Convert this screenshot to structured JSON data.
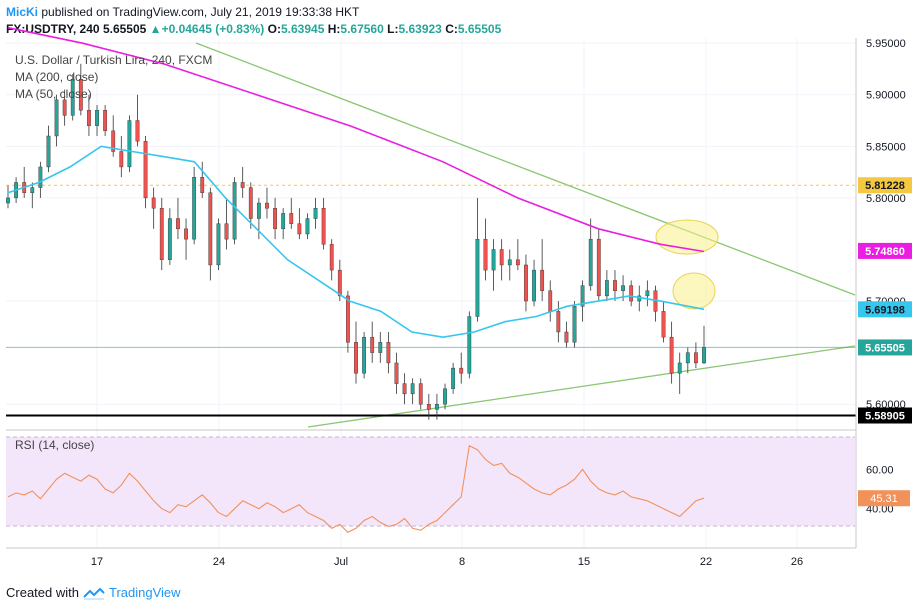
{
  "header": {
    "author": "MicKi",
    "published": "published on TradingView.com, July 21, 2019 19:33:38 HKT",
    "symbol": "FX:USDTRY, 240",
    "last": "5.65505",
    "change_arrow": "▲",
    "change": "+0.04645 (+0.83%)",
    "ohlc_o_label": "O:",
    "ohlc_o": "5.63945",
    "ohlc_h_label": "H:",
    "ohlc_h": "5.67560",
    "ohlc_l_label": "L:",
    "ohlc_l": "5.63923",
    "ohlc_c_label": "C:",
    "ohlc_c": "5.65505"
  },
  "legend": {
    "title": "U.S. Dollar / Turkish Lira, 240, FXCM",
    "ma200": "MA (200, close)",
    "ma50": "MA (50, close)"
  },
  "rsi_label": "RSI (14, close)",
  "footer": {
    "created_with": "Created with",
    "brand": "TradingView",
    "logo_icon": "tradingview-logo-icon"
  },
  "colors": {
    "bull": "#26a69a",
    "bear": "#ef5350",
    "ma200": "#e91ee0",
    "ma50": "#35c7ee",
    "trendline": "#8bc672",
    "rsi": "#f2915a",
    "support": "#000000",
    "resistance": "#f5c842",
    "rsi_band": "#f3e6fb",
    "highlight": "#f7f08a"
  },
  "chart_data": [
    {
      "type": "candlestick",
      "title": "U.S. Dollar / Turkish Lira, 240, FXCM",
      "x_tick_labels": [
        "17",
        "24",
        "Jul",
        "8",
        "15",
        "22",
        "26"
      ],
      "y_tick_labels": [
        "5.95000",
        "5.90000",
        "5.85000",
        "5.80000",
        "5.70000",
        "5.60000"
      ],
      "ylim": [
        5.575,
        5.955
      ],
      "grid": true,
      "price_labels": [
        {
          "value": "5.81228",
          "color": "#f5c842",
          "text_color": "#131722"
        },
        {
          "value": "5.74860",
          "color": "#e91ee0",
          "text_color": "#ffffff"
        },
        {
          "value": "5.69198",
          "color": "#35c7ee",
          "text_color": "#131722"
        },
        {
          "value": "5.65505",
          "color": "#26a69a",
          "text_color": "#ffffff"
        },
        {
          "value": "5.58905",
          "color": "#000000",
          "text_color": "#ffffff"
        }
      ],
      "horizontal_levels": [
        {
          "name": "resistance",
          "value": 5.81228,
          "style": "dashed"
        },
        {
          "name": "support",
          "value": 5.58905,
          "style": "solid"
        },
        {
          "name": "last",
          "value": 5.65505,
          "style": "solid"
        }
      ],
      "ma200_path": [
        [
          0,
          5.965
        ],
        [
          12,
          5.95
        ],
        [
          25,
          5.93
        ],
        [
          40,
          5.9
        ],
        [
          55,
          5.87
        ],
        [
          70,
          5.835
        ],
        [
          82,
          5.8
        ],
        [
          95,
          5.77
        ],
        [
          105,
          5.755
        ],
        [
          112,
          5.748
        ]
      ],
      "ma50_path": [
        [
          0,
          5.805
        ],
        [
          5,
          5.815
        ],
        [
          10,
          5.83
        ],
        [
          15,
          5.85
        ],
        [
          20,
          5.845
        ],
        [
          25,
          5.84
        ],
        [
          30,
          5.835
        ],
        [
          35,
          5.8
        ],
        [
          40,
          5.77
        ],
        [
          45,
          5.74
        ],
        [
          50,
          5.72
        ],
        [
          55,
          5.7
        ],
        [
          60,
          5.69
        ],
        [
          65,
          5.67
        ],
        [
          70,
          5.665
        ],
        [
          75,
          5.67
        ],
        [
          80,
          5.68
        ],
        [
          85,
          5.685
        ],
        [
          90,
          5.695
        ],
        [
          95,
          5.7
        ],
        [
          100,
          5.705
        ],
        [
          105,
          5.7
        ],
        [
          112,
          5.692
        ]
      ],
      "candles": [
        [
          5.795,
          5.812,
          5.79,
          5.8
        ],
        [
          5.8,
          5.82,
          5.795,
          5.815
        ],
        [
          5.815,
          5.83,
          5.8,
          5.805
        ],
        [
          5.805,
          5.815,
          5.79,
          5.81
        ],
        [
          5.81,
          5.835,
          5.8,
          5.83
        ],
        [
          5.83,
          5.87,
          5.825,
          5.86
        ],
        [
          5.86,
          5.9,
          5.85,
          5.895
        ],
        [
          5.895,
          5.905,
          5.87,
          5.88
        ],
        [
          5.88,
          5.92,
          5.875,
          5.915
        ],
        [
          5.915,
          5.93,
          5.88,
          5.885
        ],
        [
          5.885,
          5.9,
          5.86,
          5.87
        ],
        [
          5.87,
          5.89,
          5.86,
          5.885
        ],
        [
          5.885,
          5.89,
          5.86,
          5.865
        ],
        [
          5.865,
          5.88,
          5.84,
          5.845
        ],
        [
          5.845,
          5.86,
          5.82,
          5.83
        ],
        [
          5.83,
          5.88,
          5.825,
          5.875
        ],
        [
          5.875,
          5.9,
          5.85,
          5.855
        ],
        [
          5.855,
          5.86,
          5.79,
          5.8
        ],
        [
          5.8,
          5.81,
          5.77,
          5.79
        ],
        [
          5.79,
          5.8,
          5.73,
          5.74
        ],
        [
          5.74,
          5.79,
          5.735,
          5.78
        ],
        [
          5.78,
          5.8,
          5.76,
          5.77
        ],
        [
          5.77,
          5.78,
          5.74,
          5.76
        ],
        [
          5.76,
          5.83,
          5.755,
          5.82
        ],
        [
          5.82,
          5.835,
          5.8,
          5.805
        ],
        [
          5.805,
          5.81,
          5.72,
          5.735
        ],
        [
          5.735,
          5.78,
          5.73,
          5.775
        ],
        [
          5.775,
          5.8,
          5.75,
          5.76
        ],
        [
          5.76,
          5.82,
          5.755,
          5.815
        ],
        [
          5.815,
          5.83,
          5.8,
          5.81
        ],
        [
          5.81,
          5.815,
          5.77,
          5.78
        ],
        [
          5.78,
          5.8,
          5.76,
          5.795
        ],
        [
          5.795,
          5.81,
          5.78,
          5.79
        ],
        [
          5.79,
          5.8,
          5.76,
          5.77
        ],
        [
          5.77,
          5.79,
          5.76,
          5.785
        ],
        [
          5.785,
          5.8,
          5.77,
          5.775
        ],
        [
          5.775,
          5.79,
          5.76,
          5.765
        ],
        [
          5.765,
          5.785,
          5.76,
          5.78
        ],
        [
          5.78,
          5.8,
          5.77,
          5.79
        ],
        [
          5.79,
          5.8,
          5.75,
          5.755
        ],
        [
          5.755,
          5.76,
          5.72,
          5.73
        ],
        [
          5.73,
          5.74,
          5.7,
          5.705
        ],
        [
          5.705,
          5.71,
          5.65,
          5.66
        ],
        [
          5.66,
          5.68,
          5.62,
          5.63
        ],
        [
          5.63,
          5.67,
          5.625,
          5.665
        ],
        [
          5.665,
          5.68,
          5.64,
          5.65
        ],
        [
          5.65,
          5.67,
          5.64,
          5.66
        ],
        [
          5.66,
          5.67,
          5.63,
          5.64
        ],
        [
          5.64,
          5.65,
          5.61,
          5.62
        ],
        [
          5.62,
          5.63,
          5.6,
          5.61
        ],
        [
          5.61,
          5.625,
          5.6,
          5.62
        ],
        [
          5.62,
          5.625,
          5.595,
          5.6
        ],
        [
          5.6,
          5.61,
          5.585,
          5.595
        ],
        [
          5.595,
          5.61,
          5.585,
          5.6
        ],
        [
          5.6,
          5.62,
          5.595,
          5.615
        ],
        [
          5.615,
          5.64,
          5.61,
          5.635
        ],
        [
          5.635,
          5.65,
          5.62,
          5.63
        ],
        [
          5.63,
          5.69,
          5.625,
          5.685
        ],
        [
          5.685,
          5.8,
          5.68,
          5.76
        ],
        [
          5.76,
          5.78,
          5.72,
          5.73
        ],
        [
          5.73,
          5.76,
          5.71,
          5.75
        ],
        [
          5.75,
          5.76,
          5.72,
          5.735
        ],
        [
          5.735,
          5.75,
          5.72,
          5.74
        ],
        [
          5.74,
          5.76,
          5.73,
          5.735
        ],
        [
          5.735,
          5.745,
          5.69,
          5.7
        ],
        [
          5.7,
          5.74,
          5.695,
          5.73
        ],
        [
          5.73,
          5.76,
          5.7,
          5.71
        ],
        [
          5.71,
          5.72,
          5.68,
          5.69
        ],
        [
          5.69,
          5.7,
          5.66,
          5.67
        ],
        [
          5.67,
          5.68,
          5.655,
          5.66
        ],
        [
          5.66,
          5.7,
          5.655,
          5.695
        ],
        [
          5.695,
          5.72,
          5.68,
          5.715
        ],
        [
          5.715,
          5.78,
          5.71,
          5.76
        ],
        [
          5.76,
          5.77,
          5.7,
          5.705
        ],
        [
          5.705,
          5.73,
          5.7,
          5.72
        ],
        [
          5.72,
          5.73,
          5.7,
          5.71
        ],
        [
          5.71,
          5.725,
          5.7,
          5.715
        ],
        [
          5.715,
          5.72,
          5.695,
          5.7
        ],
        [
          5.7,
          5.715,
          5.69,
          5.705
        ],
        [
          5.705,
          5.72,
          5.695,
          5.71
        ],
        [
          5.71,
          5.715,
          5.68,
          5.69
        ],
        [
          5.69,
          5.7,
          5.66,
          5.665
        ],
        [
          5.665,
          5.68,
          5.62,
          5.63
        ],
        [
          5.63,
          5.65,
          5.61,
          5.64
        ],
        [
          5.64,
          5.655,
          5.63,
          5.65
        ],
        [
          5.65,
          5.66,
          5.635,
          5.64
        ],
        [
          5.64,
          5.676,
          5.639,
          5.655
        ]
      ]
    },
    {
      "type": "line",
      "title": "RSI (14, close)",
      "y_tick_labels": [
        "60.00",
        "40.00"
      ],
      "ylim": [
        20,
        80
      ],
      "band": [
        30,
        70
      ],
      "last_value_label": "45.31",
      "values": [
        46,
        48,
        47,
        49,
        45,
        50,
        55,
        58,
        56,
        54,
        57,
        55,
        50,
        48,
        52,
        58,
        54,
        49,
        44,
        40,
        38,
        42,
        41,
        44,
        47,
        43,
        38,
        36,
        40,
        44,
        42,
        40,
        43,
        41,
        38,
        40,
        42,
        38,
        36,
        34,
        30,
        32,
        28,
        30,
        34,
        36,
        33,
        31,
        32,
        35,
        30,
        29,
        32,
        34,
        38,
        42,
        46,
        72,
        70,
        65,
        62,
        63,
        58,
        56,
        53,
        50,
        48,
        47,
        50,
        52,
        55,
        60,
        54,
        50,
        48,
        47,
        49,
        46,
        45,
        44,
        42,
        40,
        38,
        36,
        40,
        44,
        45.31
      ]
    }
  ]
}
